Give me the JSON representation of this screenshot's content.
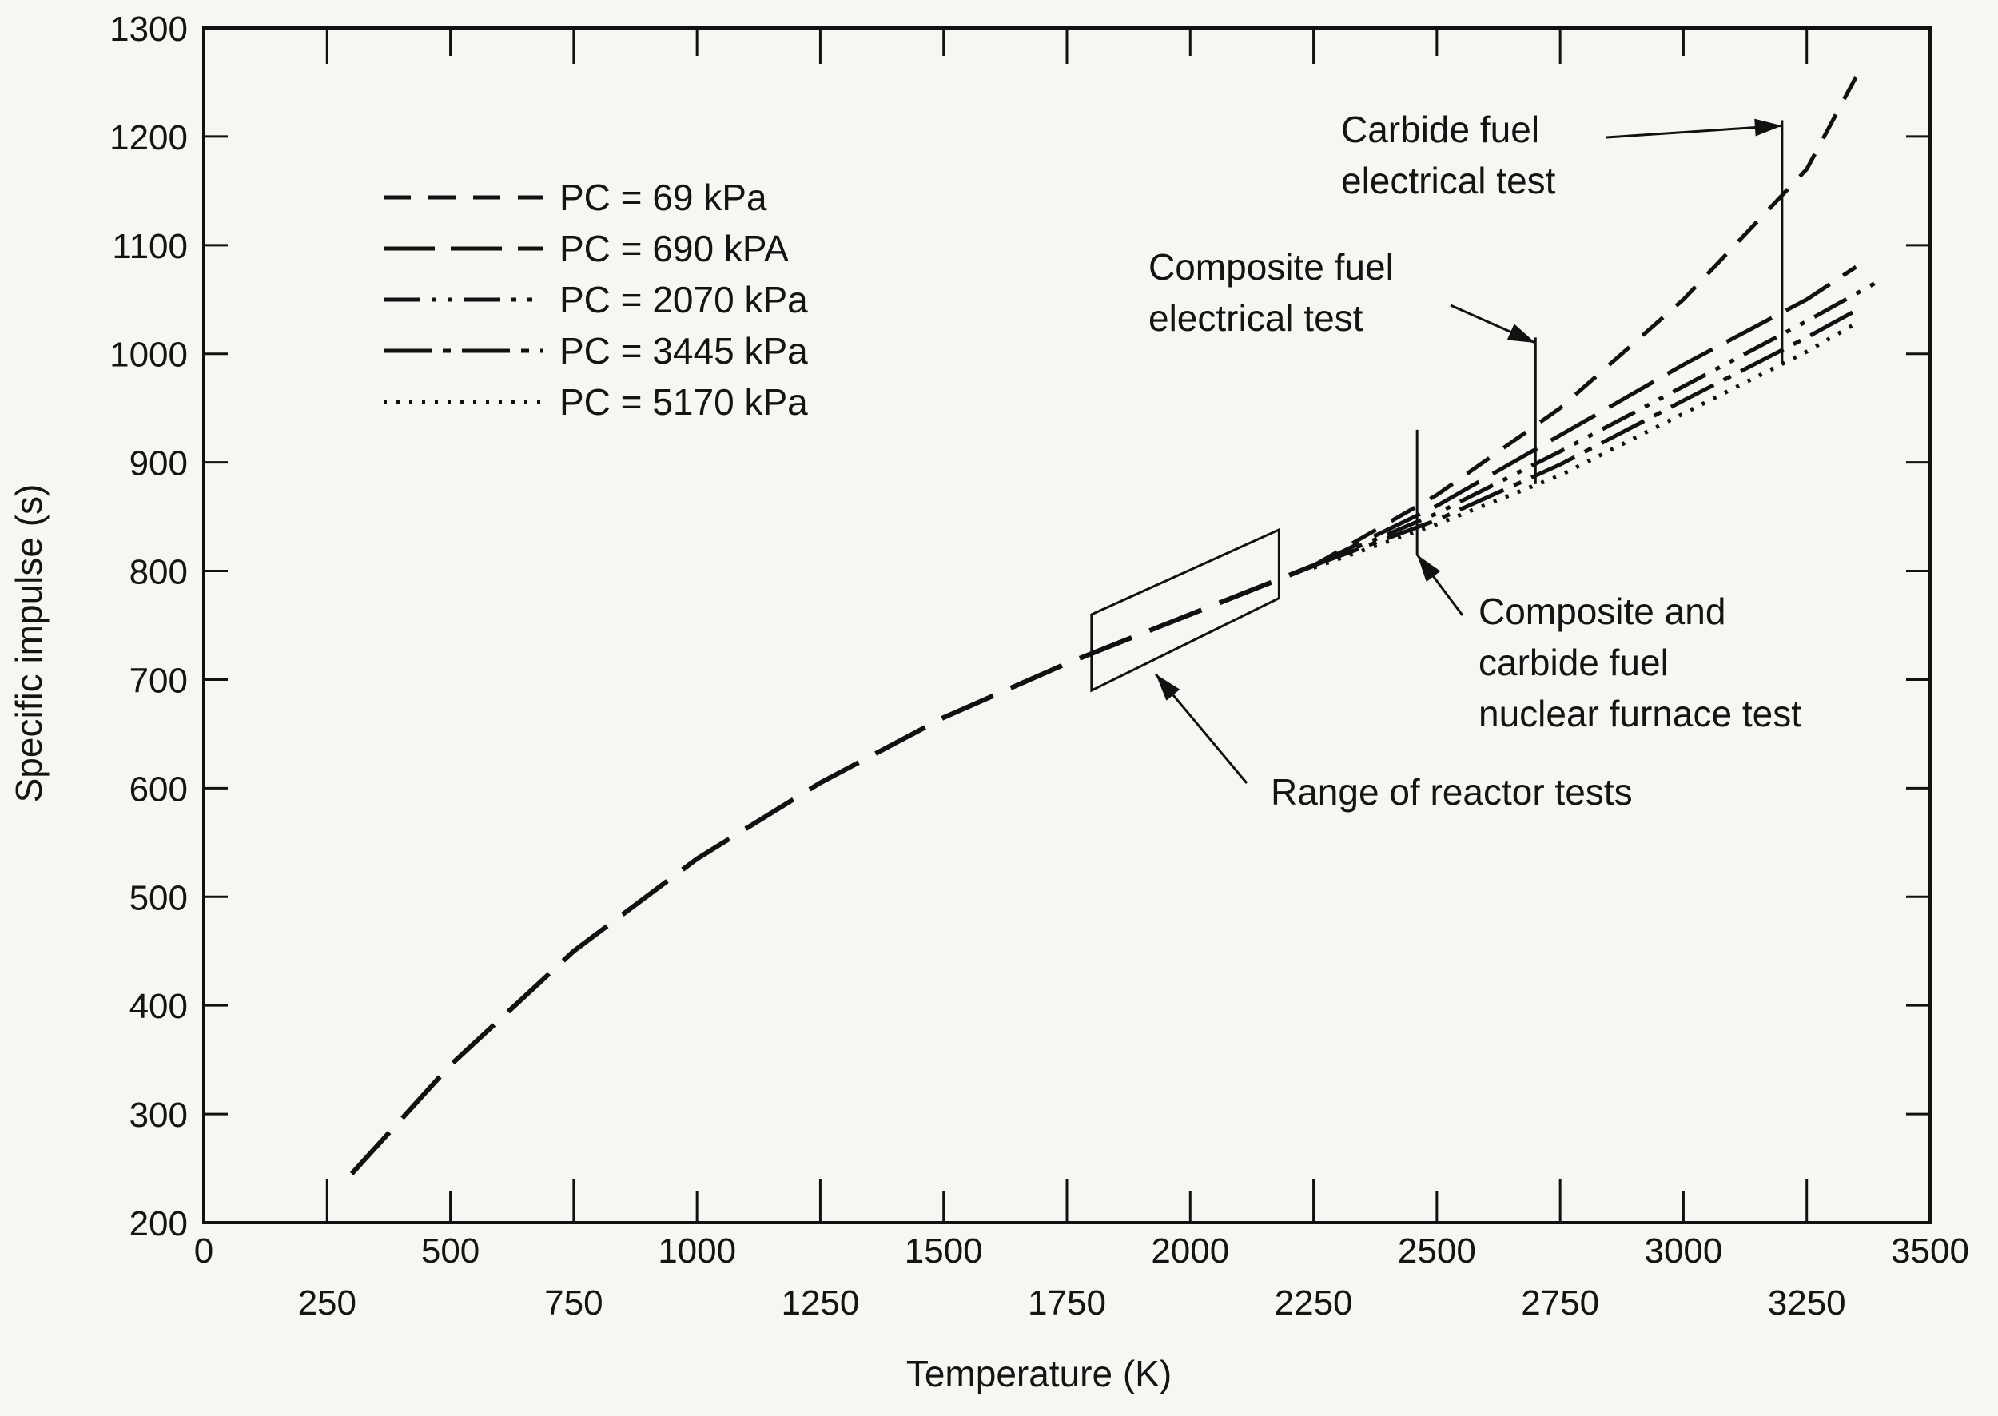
{
  "chart_data": {
    "type": "line",
    "title": "",
    "xlabel": "Temperature (K)",
    "ylabel": "Specific impulse (s)",
    "xlim": [
      0,
      3500
    ],
    "ylim": [
      200,
      1300
    ],
    "x_ticks_major": [
      0,
      500,
      1000,
      1500,
      2000,
      2500,
      3000,
      3500
    ],
    "x_ticks_minor": [
      250,
      750,
      1250,
      1750,
      2250,
      2750,
      3250
    ],
    "y_ticks": [
      200,
      300,
      400,
      500,
      600,
      700,
      800,
      900,
      1000,
      1100,
      1200,
      1300
    ],
    "grid": false,
    "legend_position": "top-left",
    "common_curve": {
      "x": [
        300,
        500,
        750,
        1000,
        1250,
        1500,
        1750,
        2000,
        2250
      ],
      "y": [
        245,
        345,
        450,
        535,
        605,
        665,
        715,
        760,
        805
      ]
    },
    "series": [
      {
        "name": "PC  =  69 kPa",
        "style": "dashed",
        "x": [
          2250,
          2500,
          2750,
          3000,
          3250,
          3350
        ],
        "y": [
          805,
          870,
          950,
          1050,
          1170,
          1255
        ]
      },
      {
        "name": "PC  =  690 kPA",
        "style": "long-dashed",
        "x": [
          2250,
          2500,
          2750,
          3000,
          3250,
          3350
        ],
        "y": [
          805,
          860,
          925,
          990,
          1050,
          1080
        ]
      },
      {
        "name": "PC  =  2070 kPa",
        "style": "dash-dot-dot",
        "x": [
          2250,
          2500,
          2750,
          3000,
          3250,
          3400
        ],
        "y": [
          805,
          853,
          910,
          970,
          1030,
          1068
        ]
      },
      {
        "name": "PC  =  3445 kPa",
        "style": "dash-dot",
        "x": [
          2250,
          2500,
          2750,
          3000,
          3250,
          3350
        ],
        "y": [
          805,
          847,
          898,
          957,
          1015,
          1040
        ]
      },
      {
        "name": "PC  =  5170 kPa",
        "style": "dotted",
        "x": [
          2250,
          2500,
          2750,
          3000,
          3250,
          3350
        ],
        "y": [
          803,
          843,
          888,
          945,
          1002,
          1028
        ]
      }
    ],
    "annotations": [
      {
        "text": [
          "Carbide fuel",
          "electrical test"
        ],
        "target_x": 3200,
        "target_y": 1210
      },
      {
        "text": [
          "Composite fuel",
          "electrical test"
        ],
        "target_x": 2700,
        "target_y": 1010
      },
      {
        "text": [
          "Composite and",
          "carbide fuel",
          "nuclear furnace test"
        ],
        "target_x": 2460,
        "target_y": 815
      },
      {
        "text": [
          "Range of reactor tests"
        ],
        "target_x": 1930,
        "target_y": 705
      }
    ],
    "reactor_test_range": {
      "x": [
        1800,
        2180
      ],
      "y_low": [
        690,
        775
      ],
      "y_high": [
        760,
        838
      ]
    },
    "test_markers_x": [
      2460,
      2700,
      3200
    ]
  }
}
